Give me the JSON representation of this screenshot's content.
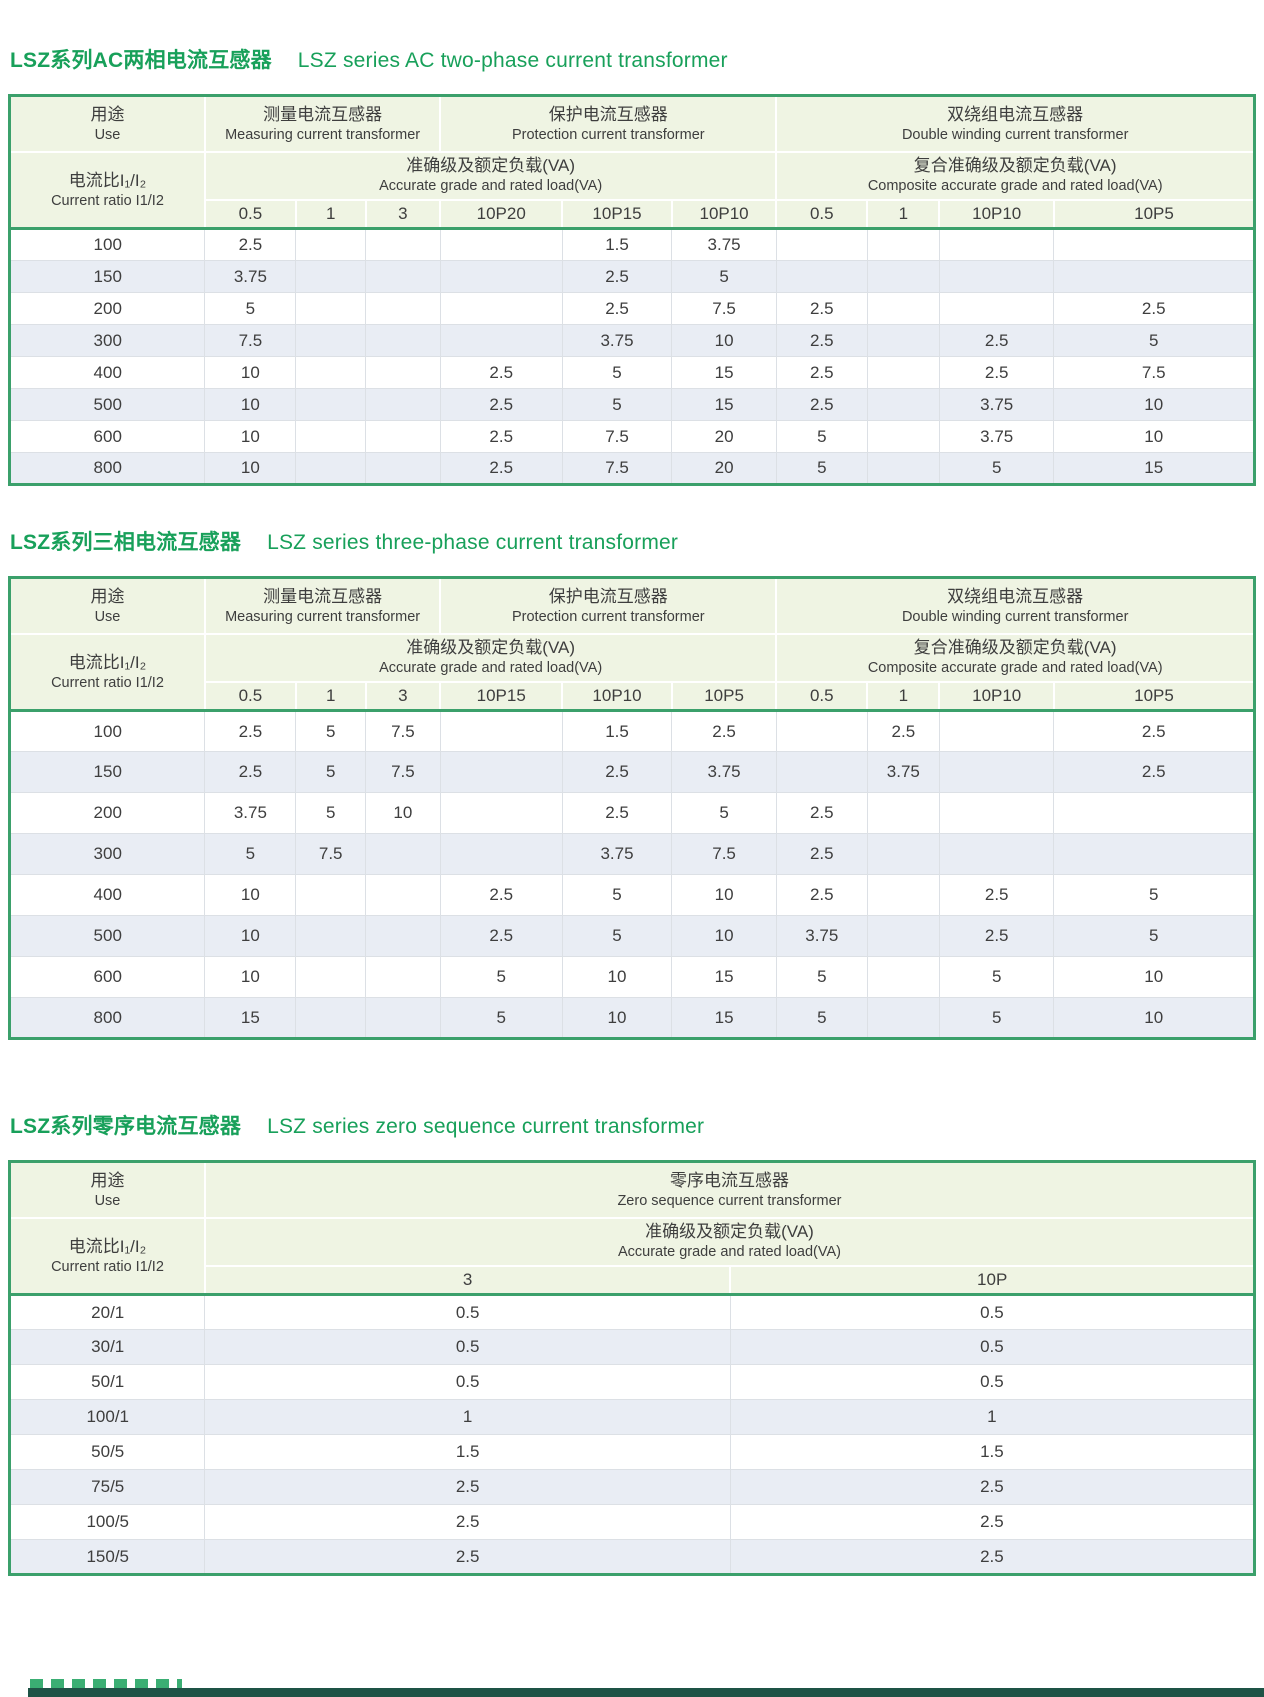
{
  "theme": {
    "title_green": "#18A05A",
    "table_border_green": "#3BA06B",
    "header_bg": "#EFF4E3",
    "row_alt_bg": "#E9EDF4",
    "text": "#3E3E3E",
    "cutoff_bar": "#1E5346"
  },
  "sections": [
    {
      "id": "two-phase",
      "title_zh": "LSZ系列AC两相电流互感器",
      "title_en": "LSZ series AC two-phase current transformer",
      "table": {
        "use_zh": "用途",
        "use_en": "Use",
        "ratio_zh": "电流比I₁/I₂",
        "ratio_en": "Current ratio I1/I2",
        "groups": [
          {
            "zh": "测量电流互感器",
            "en": "Measuring current transformer",
            "span": 3
          },
          {
            "zh": "保护电流互感器",
            "en": "Protection current transformer",
            "span": 3
          },
          {
            "zh": "双绕组电流互感器",
            "en": "Double winding current transformer",
            "span": 4
          }
        ],
        "subheaders": [
          {
            "zh": "准确级及额定负载(VA)",
            "en": "Accurate grade and rated load(VA)",
            "span": 6
          },
          {
            "zh": "复合准确级及额定负载(VA)",
            "en": "Composite accurate grade and rated load(VA)",
            "span": 4
          }
        ],
        "grades": [
          "0.5",
          "1",
          "3",
          "10P20",
          "10P15",
          "10P10",
          "0.5",
          "1",
          "10P10",
          "10P5"
        ],
        "col_widths": [
          "15.7%",
          "7.3%",
          "5.6%",
          "6.0%",
          "9.8%",
          "8.8%",
          "8.4%",
          "7.3%",
          "5.8%",
          "9.2%",
          "16.1%"
        ],
        "rows": [
          {
            "ratio": "100",
            "values": [
              "2.5",
              "",
              "",
              "",
              "1.5",
              "3.75",
              "",
              "",
              "",
              ""
            ]
          },
          {
            "ratio": "150",
            "values": [
              "3.75",
              "",
              "",
              "",
              "2.5",
              "5",
              "",
              "",
              "",
              ""
            ]
          },
          {
            "ratio": "200",
            "values": [
              "5",
              "",
              "",
              "",
              "2.5",
              "7.5",
              "2.5",
              "",
              "",
              "2.5"
            ]
          },
          {
            "ratio": "300",
            "values": [
              "7.5",
              "",
              "",
              "",
              "3.75",
              "10",
              "2.5",
              "",
              "2.5",
              "5"
            ]
          },
          {
            "ratio": "400",
            "values": [
              "10",
              "",
              "",
              "2.5",
              "5",
              "15",
              "2.5",
              "",
              "2.5",
              "7.5"
            ]
          },
          {
            "ratio": "500",
            "values": [
              "10",
              "",
              "",
              "2.5",
              "5",
              "15",
              "2.5",
              "",
              "3.75",
              "10"
            ]
          },
          {
            "ratio": "600",
            "values": [
              "10",
              "",
              "",
              "2.5",
              "7.5",
              "20",
              "5",
              "",
              "3.75",
              "10"
            ]
          },
          {
            "ratio": "800",
            "values": [
              "10",
              "",
              "",
              "2.5",
              "7.5",
              "20",
              "5",
              "",
              "5",
              "15"
            ]
          }
        ]
      }
    },
    {
      "id": "three-phase",
      "title_zh": "LSZ系列三相电流互感器",
      "title_en": "LSZ series three-phase current transformer",
      "table": {
        "use_zh": "用途",
        "use_en": "Use",
        "ratio_zh": "电流比I₁/I₂",
        "ratio_en": "Current ratio I1/I2",
        "groups": [
          {
            "zh": "测量电流互感器",
            "en": "Measuring current transformer",
            "span": 3
          },
          {
            "zh": "保护电流互感器",
            "en": "Protection current transformer",
            "span": 3
          },
          {
            "zh": "双绕组电流互感器",
            "en": "Double winding current transformer",
            "span": 4
          }
        ],
        "subheaders": [
          {
            "zh": "准确级及额定负载(VA)",
            "en": "Accurate grade and rated load(VA)",
            "span": 6
          },
          {
            "zh": "复合准确级及额定负载(VA)",
            "en": "Composite accurate grade and rated load(VA)",
            "span": 4
          }
        ],
        "grades": [
          "0.5",
          "1",
          "3",
          "10P15",
          "10P10",
          "10P5",
          "0.5",
          "1",
          "10P10",
          "10P5"
        ],
        "col_widths": [
          "15.7%",
          "7.3%",
          "5.6%",
          "6.0%",
          "9.8%",
          "8.8%",
          "8.4%",
          "7.3%",
          "5.8%",
          "9.2%",
          "16.1%"
        ],
        "rows": [
          {
            "ratio": "100",
            "values": [
              "2.5",
              "5",
              "7.5",
              "",
              "1.5",
              "2.5",
              "",
              "2.5",
              "",
              "2.5"
            ]
          },
          {
            "ratio": "150",
            "values": [
              "2.5",
              "5",
              "7.5",
              "",
              "2.5",
              "3.75",
              "",
              "3.75",
              "",
              "2.5"
            ]
          },
          {
            "ratio": "200",
            "values": [
              "3.75",
              "5",
              "10",
              "",
              "2.5",
              "5",
              "2.5",
              "",
              "",
              ""
            ]
          },
          {
            "ratio": "300",
            "values": [
              "5",
              "7.5",
              "",
              "",
              "3.75",
              "7.5",
              "2.5",
              "",
              "",
              ""
            ]
          },
          {
            "ratio": "400",
            "values": [
              "10",
              "",
              "",
              "2.5",
              "5",
              "10",
              "2.5",
              "",
              "2.5",
              "5"
            ]
          },
          {
            "ratio": "500",
            "values": [
              "10",
              "",
              "",
              "2.5",
              "5",
              "10",
              "3.75",
              "",
              "2.5",
              "5"
            ]
          },
          {
            "ratio": "600",
            "values": [
              "10",
              "",
              "",
              "5",
              "10",
              "15",
              "5",
              "",
              "5",
              "10"
            ]
          },
          {
            "ratio": "800",
            "values": [
              "15",
              "",
              "",
              "5",
              "10",
              "15",
              "5",
              "",
              "5",
              "10"
            ]
          }
        ]
      }
    },
    {
      "id": "zero-sequence",
      "title_zh": "LSZ系列零序电流互感器",
      "title_en": "LSZ series zero sequence current transformer",
      "table": {
        "use_zh": "用途",
        "use_en": "Use",
        "ratio_zh": "电流比I₁/I₂",
        "ratio_en": "Current ratio I1/I2",
        "groups": [
          {
            "zh": "零序电流互感器",
            "en": "Zero sequence current transformer",
            "span": 2
          }
        ],
        "subheaders": [
          {
            "zh": "准确级及额定负载(VA)",
            "en": "Accurate grade and rated load(VA)",
            "span": 2
          }
        ],
        "grades": [
          "3",
          "10P"
        ],
        "col_widths": [
          "15.7%",
          "42.2%",
          "42.1%"
        ],
        "rows": [
          {
            "ratio": "20/1",
            "values": [
              "0.5",
              "0.5"
            ]
          },
          {
            "ratio": "30/1",
            "values": [
              "0.5",
              "0.5"
            ]
          },
          {
            "ratio": "50/1",
            "values": [
              "0.5",
              "0.5"
            ]
          },
          {
            "ratio": "100/1",
            "values": [
              "1",
              "1"
            ]
          },
          {
            "ratio": "50/5",
            "values": [
              "1.5",
              "1.5"
            ]
          },
          {
            "ratio": "75/5",
            "values": [
              "2.5",
              "2.5"
            ]
          },
          {
            "ratio": "100/5",
            "values": [
              "2.5",
              "2.5"
            ]
          },
          {
            "ratio": "150/5",
            "values": [
              "2.5",
              "2.5"
            ]
          }
        ]
      }
    }
  ]
}
